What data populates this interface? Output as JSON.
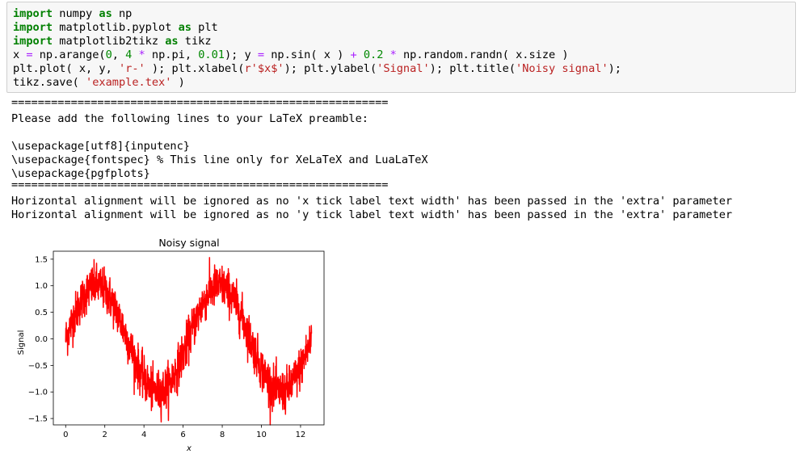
{
  "code_cell": {
    "line1": {
      "kw": "import",
      "rest": " numpy ",
      "kw2": "as",
      "rest2": " np"
    },
    "line2": {
      "kw": "import",
      "rest": " matplotlib.pyplot ",
      "kw2": "as",
      "rest2": " plt"
    },
    "line3": {
      "kw": "import",
      "rest": " matplotlib2tikz ",
      "kw2": "as",
      "rest2": " tikz"
    },
    "line4": {
      "a": "x ",
      "op1": "=",
      "b": " np.arange(",
      "n0": "0",
      "c": ", ",
      "n4": "4",
      "d": " ",
      "op2": "*",
      "e": " np.pi, ",
      "n001": "0.01",
      "f": "); y ",
      "op3": "=",
      "g": " np.sin( x ) ",
      "op4": "+",
      "h": " ",
      "n02": "0.2",
      "i": " ",
      "op5": "*",
      "j": " np.random.randn( x.size )"
    },
    "line5": {
      "a": "plt.plot( x, y, ",
      "s1": "'r-'",
      "b": " ); plt.xlabel(",
      "s2": "r'$x$'",
      "c": "); plt.ylabel(",
      "s3": "'Signal'",
      "d": "); plt.title(",
      "s4": "'Noisy signal'",
      "e": ");"
    },
    "line6": {
      "a": "tikz.save( ",
      "s1": "'example.tex'",
      "b": " )"
    }
  },
  "output": {
    "separator": "=========================================================",
    "preamble_msg": "Please add the following lines to your LaTeX preamble:",
    "pkg1": "\\usepackage[utf8]{inputenc}",
    "pkg2": "\\usepackage{fontspec} % This line only for XeLaTeX and LuaLaTeX",
    "pkg3": "\\usepackage{pgfplots}",
    "warn1": "Horizontal alignment will be ignored as no 'x tick label text width' has been passed in the 'extra' parameter",
    "warn2": "Horizontal alignment will be ignored as no 'y tick label text width' has been passed in the 'extra' parameter"
  },
  "colors": {
    "keyword": "#008000",
    "operator": "#aa22ff",
    "number": "#008800",
    "string": "#ba2121",
    "series": "#ff0000"
  },
  "chart_data": {
    "type": "line",
    "title": "Noisy signal",
    "xlabel": "x",
    "ylabel": "Signal",
    "xlim": [
      -0.63,
      13.2
    ],
    "ylim": [
      -1.62,
      1.65
    ],
    "xticks": [
      0,
      2,
      4,
      6,
      8,
      10,
      12
    ],
    "xtick_labels": [
      "0",
      "2",
      "4",
      "6",
      "8",
      "10",
      "12"
    ],
    "yticks": [
      -1.5,
      -1.0,
      -0.5,
      0.0,
      0.5,
      1.0,
      1.5
    ],
    "ytick_labels": [
      "−1.5",
      "−1.0",
      "−0.5",
      "0.0",
      "0.5",
      "1.0",
      "1.5"
    ],
    "grid": false,
    "series": [
      {
        "function": "sin(x) + 0.2 * randn",
        "x_start": 0,
        "x_stop": 12.566,
        "x_step": 0.01,
        "noise_sigma": 0.2,
        "color": "#ff0000",
        "style": "r-"
      }
    ]
  }
}
